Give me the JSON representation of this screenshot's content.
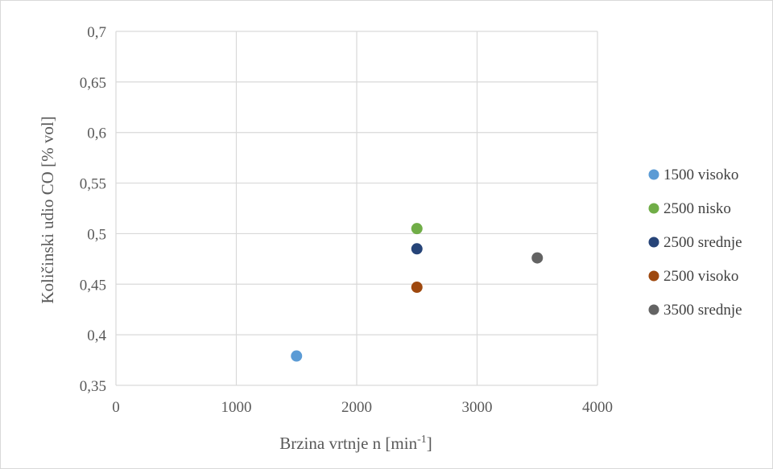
{
  "chart_data": {
    "type": "scatter",
    "xlabel": "Brzina vrtnje n [min",
    "xlabel_superscript": "-1",
    "xlabel_suffix": "]",
    "ylabel": "Količinski udio CO [% vol]",
    "xlim": [
      0,
      4000
    ],
    "ylim": [
      0.35,
      0.7
    ],
    "x_ticks": [
      0,
      1000,
      2000,
      3000,
      4000
    ],
    "x_tick_labels": [
      "0",
      "1000",
      "2000",
      "3000",
      "4000"
    ],
    "y_ticks": [
      0.35,
      0.4,
      0.45,
      0.5,
      0.55,
      0.6,
      0.65,
      0.7
    ],
    "y_tick_labels": [
      "0,35",
      "0,4",
      "0,45",
      "0,5",
      "0,55",
      "0,6",
      "0,65",
      "0,7"
    ],
    "grid": true,
    "legend_position": "right",
    "series": [
      {
        "name": "1500 visoko",
        "color": "#5b9bd5",
        "points": [
          [
            1500,
            0.379
          ]
        ]
      },
      {
        "name": "2500 nisko",
        "color": "#70ad47",
        "points": [
          [
            2500,
            0.505
          ]
        ]
      },
      {
        "name": "2500 srednje",
        "color": "#264478",
        "points": [
          [
            2500,
            0.485
          ]
        ]
      },
      {
        "name": "2500 visoko",
        "color": "#9e480e",
        "points": [
          [
            2500,
            0.447
          ]
        ]
      },
      {
        "name": "3500 srednje",
        "color": "#636363",
        "points": [
          [
            3500,
            0.476
          ]
        ]
      }
    ]
  }
}
